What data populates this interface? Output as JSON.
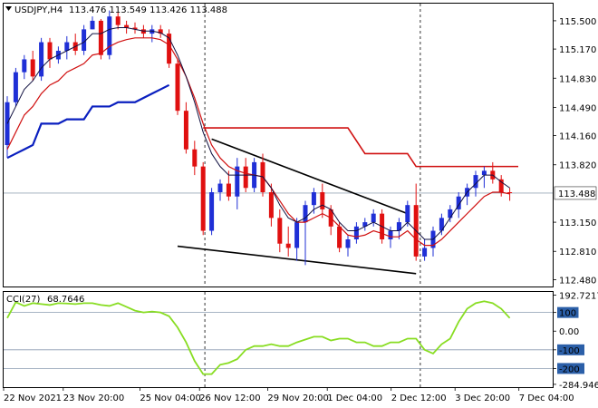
{
  "header": {
    "symbol": "USDJPY,H4",
    "ohlc": "113.476 113.549 113.426 113.488"
  },
  "cci_header": {
    "name": "CCI(27)",
    "value": "68.7646"
  },
  "current_price_label": "113.488",
  "colors": {
    "bull": "#1f2fd6",
    "bear": "#e01010",
    "fast_ma": "#101040",
    "slow_ma": "#d01010",
    "kijun": "#0a1fbf",
    "resistance": "#d01010",
    "trendline": "#000000",
    "cci": "#88dd22",
    "level_box": "#2b5fa8"
  },
  "chart_data": [
    {
      "type": "candlestick",
      "title": "",
      "ylim": [
        112.4,
        115.7
      ],
      "y_ticks": [
        "115.500",
        "115.170",
        "114.830",
        "114.490",
        "114.160",
        "113.820",
        "113.150",
        "112.810",
        "112.480"
      ],
      "x_ticks": [
        "22 Nov 2021",
        "23 Nov 20:00",
        "25 Nov 04:00",
        "26 Nov 12:00",
        "29 Nov 20:00",
        "1 Dec 04:00",
        "2 Dec 12:00",
        "3 Dec 20:00",
        "7 Dec 04:00"
      ],
      "candles": [
        [
          114.05,
          114.62,
          113.9,
          114.55
        ],
        [
          114.55,
          114.95,
          114.5,
          114.9
        ],
        [
          114.9,
          115.1,
          114.82,
          115.05
        ],
        [
          115.05,
          115.15,
          114.8,
          114.85
        ],
        [
          114.85,
          115.3,
          114.8,
          115.25
        ],
        [
          115.25,
          115.3,
          114.95,
          115.05
        ],
        [
          115.05,
          115.2,
          115.0,
          115.15
        ],
        [
          115.15,
          115.32,
          115.05,
          115.25
        ],
        [
          115.25,
          115.35,
          115.1,
          115.15
        ],
        [
          115.15,
          115.45,
          115.1,
          115.4
        ],
        [
          115.4,
          115.55,
          115.4,
          115.5
        ],
        [
          115.5,
          115.52,
          115.05,
          115.1
        ],
        [
          115.1,
          115.62,
          115.05,
          115.55
        ],
        [
          115.55,
          115.6,
          115.4,
          115.45
        ],
        [
          115.45,
          115.5,
          115.35,
          115.42
        ],
        [
          115.42,
          115.48,
          115.35,
          115.4
        ],
        [
          115.4,
          115.45,
          115.3,
          115.35
        ],
        [
          115.35,
          115.45,
          115.25,
          115.4
        ],
        [
          115.4,
          115.45,
          115.3,
          115.35
        ],
        [
          115.35,
          115.4,
          114.95,
          115.0
        ],
        [
          115.0,
          115.05,
          114.4,
          114.45
        ],
        [
          114.45,
          114.55,
          113.95,
          114.0
        ],
        [
          114.0,
          114.1,
          113.7,
          113.8
        ],
        [
          113.8,
          113.85,
          113.0,
          113.05
        ],
        [
          113.05,
          113.55,
          113.0,
          113.5
        ],
        [
          113.5,
          113.65,
          113.4,
          113.6
        ],
        [
          113.6,
          113.75,
          113.4,
          113.45
        ],
        [
          113.45,
          113.9,
          113.3,
          113.8
        ],
        [
          113.8,
          113.9,
          113.5,
          113.55
        ],
        [
          113.55,
          113.9,
          113.5,
          113.85
        ],
        [
          113.85,
          113.95,
          113.45,
          113.5
        ],
        [
          113.5,
          113.6,
          113.1,
          113.2
        ],
        [
          113.2,
          113.3,
          112.8,
          112.9
        ],
        [
          112.9,
          113.1,
          112.75,
          112.85
        ],
        [
          112.85,
          113.2,
          112.7,
          113.15
        ],
        [
          113.15,
          113.4,
          112.65,
          113.35
        ],
        [
          113.35,
          113.55,
          113.25,
          113.5
        ],
        [
          113.5,
          113.6,
          113.2,
          113.3
        ],
        [
          113.3,
          113.35,
          113.0,
          113.1
        ],
        [
          113.1,
          113.15,
          112.8,
          112.85
        ],
        [
          112.85,
          113.0,
          112.75,
          112.95
        ],
        [
          112.95,
          113.15,
          112.9,
          113.1
        ],
        [
          113.1,
          113.2,
          113.05,
          113.15
        ],
        [
          113.15,
          113.3,
          113.1,
          113.25
        ],
        [
          113.25,
          113.3,
          112.9,
          112.95
        ],
        [
          112.95,
          113.1,
          112.85,
          113.05
        ],
        [
          113.05,
          113.2,
          112.95,
          113.15
        ],
        [
          113.15,
          113.4,
          113.1,
          113.35
        ],
        [
          113.35,
          113.6,
          112.7,
          112.75
        ],
        [
          112.75,
          112.95,
          112.7,
          112.85
        ],
        [
          112.85,
          113.1,
          112.75,
          113.05
        ],
        [
          113.05,
          113.25,
          113.0,
          113.2
        ],
        [
          113.2,
          113.35,
          113.15,
          113.3
        ],
        [
          113.3,
          113.5,
          113.2,
          113.45
        ],
        [
          113.45,
          113.6,
          113.35,
          113.55
        ],
        [
          113.55,
          113.75,
          113.45,
          113.7
        ],
        [
          113.7,
          113.8,
          113.55,
          113.75
        ],
        [
          113.75,
          113.85,
          113.6,
          113.65
        ],
        [
          113.65,
          113.7,
          113.45,
          113.5
        ],
        [
          113.5,
          113.55,
          113.4,
          113.49
        ]
      ],
      "fast_ma": [
        114.3,
        114.5,
        114.7,
        114.8,
        114.95,
        115.05,
        115.1,
        115.15,
        115.2,
        115.25,
        115.35,
        115.35,
        115.4,
        115.42,
        115.42,
        115.4,
        115.38,
        115.38,
        115.36,
        115.3,
        115.1,
        114.85,
        114.55,
        114.2,
        113.95,
        113.8,
        113.7,
        113.7,
        113.7,
        113.7,
        113.68,
        113.55,
        113.35,
        113.2,
        113.15,
        113.2,
        113.3,
        113.35,
        113.3,
        113.15,
        113.05,
        113.05,
        113.1,
        113.15,
        113.1,
        113.05,
        113.05,
        113.15,
        113.05,
        112.95,
        112.95,
        113.05,
        113.2,
        113.35,
        113.5,
        113.6,
        113.7,
        113.7,
        113.62,
        113.55
      ],
      "slow_ma": [
        114.0,
        114.2,
        114.4,
        114.5,
        114.65,
        114.75,
        114.8,
        114.9,
        114.95,
        115.0,
        115.1,
        115.12,
        115.2,
        115.25,
        115.28,
        115.3,
        115.3,
        115.3,
        115.28,
        115.22,
        115.05,
        114.85,
        114.6,
        114.3,
        114.05,
        113.9,
        113.8,
        113.75,
        113.72,
        113.7,
        113.68,
        113.55,
        113.4,
        113.25,
        113.15,
        113.15,
        113.2,
        113.25,
        113.2,
        113.1,
        113.0,
        112.98,
        113.0,
        113.05,
        113.02,
        112.98,
        112.98,
        113.05,
        112.95,
        112.88,
        112.88,
        112.95,
        113.05,
        113.15,
        113.25,
        113.35,
        113.45,
        113.5,
        113.5,
        113.48
      ],
      "kijun": [
        113.9,
        113.95,
        114.0,
        114.05,
        114.3,
        114.3,
        114.3,
        114.35,
        114.35,
        114.35,
        114.5,
        114.5,
        114.5,
        114.55,
        114.55,
        114.55,
        114.6,
        114.65,
        114.7,
        114.75
      ]
    },
    {
      "type": "line",
      "title": "",
      "ylim": [
        -300,
        210
      ],
      "y_ticks": [
        "192.7217",
        "100",
        "0.00",
        "-100",
        "-200",
        "-284.9462"
      ],
      "levels": [
        100,
        -100,
        -200
      ],
      "values": [
        70,
        155,
        135,
        150,
        145,
        140,
        150,
        148,
        145,
        150,
        150,
        140,
        135,
        150,
        130,
        110,
        100,
        105,
        100,
        80,
        20,
        -60,
        -160,
        -230,
        -230,
        -180,
        -170,
        -150,
        -100,
        -80,
        -80,
        -70,
        -80,
        -80,
        -60,
        -45,
        -30,
        -30,
        -50,
        -40,
        -40,
        -60,
        -60,
        -80,
        -80,
        -60,
        -60,
        -40,
        -40,
        -100,
        -120,
        -70,
        -40,
        50,
        120,
        150,
        160,
        150,
        120,
        70
      ]
    }
  ]
}
